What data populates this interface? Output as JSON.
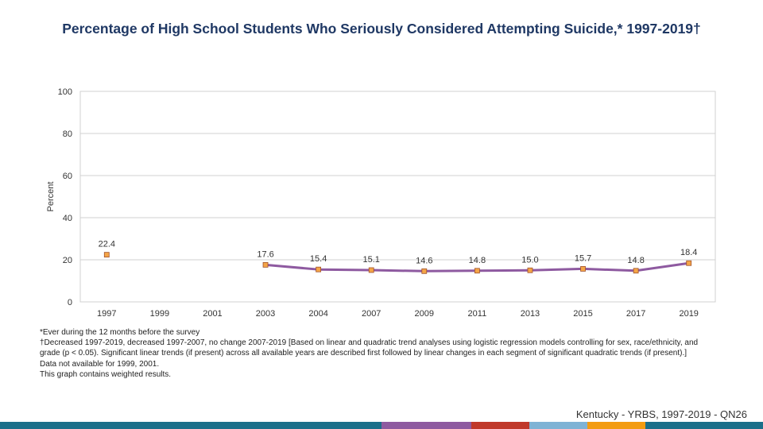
{
  "chart_data": {
    "type": "line",
    "title": "Percentage of High School Students Who Seriously Considered Attempting Suicide,* 1997-2019†",
    "xlabel": "",
    "ylabel": "Percent",
    "ylim": [
      0,
      100
    ],
    "yticks": [
      0,
      20,
      40,
      60,
      80,
      100
    ],
    "grid": true,
    "categories": [
      "1997",
      "1999",
      "2001",
      "2003",
      "2004",
      "2007",
      "2009",
      "2011",
      "2013",
      "2015",
      "2017",
      "2019"
    ],
    "series": [
      {
        "name": "Seriously considered attempting suicide",
        "values": [
          22.4,
          null,
          null,
          17.6,
          15.4,
          15.1,
          14.6,
          14.8,
          15.0,
          15.7,
          14.8,
          18.4
        ],
        "labels": [
          "22.4",
          "",
          "",
          "17.6",
          "15.4",
          "15.1",
          "14.6",
          "14.8",
          "15.0",
          "15.7",
          "14.8",
          "18.4"
        ],
        "line_color": "#8e5aa0",
        "marker_color": "#f4a547",
        "marker_edge": "#a0522d"
      }
    ]
  },
  "notes": {
    "line1": "*Ever during the 12 months before the survey",
    "line2": "†Decreased 1997-2019, decreased 1997-2007, no change 2007-2019 [Based on linear and quadratic trend analyses using logistic regression models controlling for sex, race/ethnicity, and grade (p < 0.05). Significant linear trends (if present) across all available years are described first followed by linear changes in each segment of significant quadratic trends (if present).]",
    "line3": "Data not available for 1999, 2001.",
    "line4": "This graph contains weighted results."
  },
  "source": "Kentucky - YRBS, 1997-2019 - QN26",
  "colors": {
    "title": "#1f3864",
    "grid": "#d0d0d0",
    "bar": [
      "#1b6f8a",
      "#1b6f8a",
      "#8e5aa0",
      "#c0392b",
      "#7fb3d5",
      "#f39c12",
      "#1b6f8a"
    ]
  }
}
